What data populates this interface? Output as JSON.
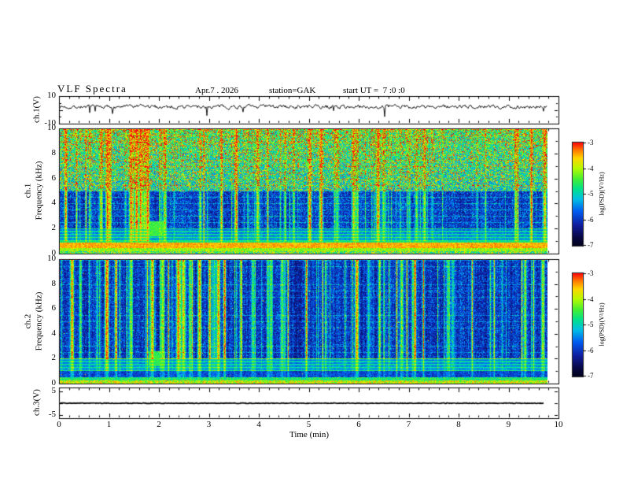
{
  "header": {
    "title": "VLF Spectra",
    "date": "Apr.7 . 2026",
    "station": "station=GAK",
    "start_ut": "start UT =  7 :0 :0"
  },
  "axes": {
    "x": {
      "label": "Time (min)",
      "min": 0,
      "max": 10,
      "ticks": [
        "0",
        "1",
        "2",
        "3",
        "4",
        "5",
        "6",
        "7",
        "8",
        "9",
        "10"
      ]
    },
    "ch1_wave": {
      "ylabel": "ch.1(V)",
      "ymin": -10,
      "ymax": 10,
      "yticks": [
        "10",
        "-10"
      ]
    },
    "spec1": {
      "ch": "ch.1",
      "ylabel": "Frequency (kHz)",
      "ymin": 0,
      "ymax": 10,
      "yticks": [
        "10",
        "8",
        "6",
        "4",
        "2",
        "0"
      ]
    },
    "spec2": {
      "ch": "ch.2",
      "ylabel": "Frequency (kHz)",
      "ymin": 0,
      "ymax": 10,
      "yticks": [
        "10",
        "8",
        "6",
        "4",
        "2",
        "0"
      ]
    },
    "ch3_wave": {
      "ylabel": "ch.3(V)",
      "yticks": [
        "5",
        "-5"
      ]
    },
    "colorbar": {
      "label": "log(PSD)(V²/Hz)",
      "vmin": -7,
      "vmax": -3,
      "ticks": [
        "-3",
        "-4",
        "-5",
        "-6",
        "-7"
      ]
    }
  },
  "chart_data": [
    {
      "panel": "ch1_waveform",
      "type": "line",
      "xlabel": "Time (min)",
      "ylabel": "ch.1(V)",
      "xlim": [
        0,
        10
      ],
      "ylim": [
        -10,
        10
      ],
      "data_extent_min": 9.78,
      "description": "Noisy voltage trace centered near +3 V with intermittent downward spikes reaching about -8 V across the full record."
    },
    {
      "panel": "ch1_spectrogram",
      "type": "heatmap",
      "xlabel": "Time (min)",
      "ylabel": "Frequency (kHz)",
      "xlim": [
        0,
        10
      ],
      "ylim": [
        0,
        10
      ],
      "zlabel": "log(PSD)(V²/Hz)",
      "zlim": [
        -7,
        -3
      ],
      "data_extent_min": 9.78,
      "features": [
        "broadband impulsive vertical streaks (sferics) spanning 0-10 kHz throughout",
        "dense green/yellow speckle above ~5 kHz (PSD ~ -4.5)",
        "dark blue background (~ -6.5) between 2 and 5 kHz with bright columns",
        "striped cyan band between 1 and 2 kHz",
        "intense continuous red/orange band near 0.4-0.9 kHz (PSD ~ -3.5)",
        "yellow-green band near 0.2-0.4 kHz",
        "green enhancement near t = 1.8-2.1 min at 1.5-2.5 kHz",
        "faint horizontal harmonic lines roughly every 0.5 kHz"
      ]
    },
    {
      "panel": "ch2_spectrogram",
      "type": "heatmap",
      "xlabel": "Time (min)",
      "ylabel": "Frequency (kHz)",
      "xlim": [
        0,
        10
      ],
      "ylim": [
        0,
        10
      ],
      "zlabel": "log(PSD)(V²/Hz)",
      "zlim": [
        -7,
        -3
      ],
      "data_extent_min": 9.78,
      "features": [
        "overall darker than ch.1: navy background (~ -6.6) above 2 kHz",
        "frequent narrow vertical bright streaks (cyan/green) full height",
        "striped cyan/green band between 1 and 2 kHz",
        "thin bright mixed band below ~0.3 kHz",
        "sparse red speckles at mid frequencies",
        "green enhancement near t = 1.8-2.1 min at 1.5-2.5 kHz",
        "faint horizontal harmonic lines roughly every 0.5 kHz"
      ]
    },
    {
      "panel": "ch3_waveform",
      "type": "line",
      "xlabel": "Time (min)",
      "ylabel": "ch.3(V)",
      "xlim": [
        0,
        10
      ],
      "ylim": [
        -5,
        5
      ],
      "data_extent_min": 9.72,
      "description": "Flat thick trace at 0 V for the entire record."
    }
  ]
}
